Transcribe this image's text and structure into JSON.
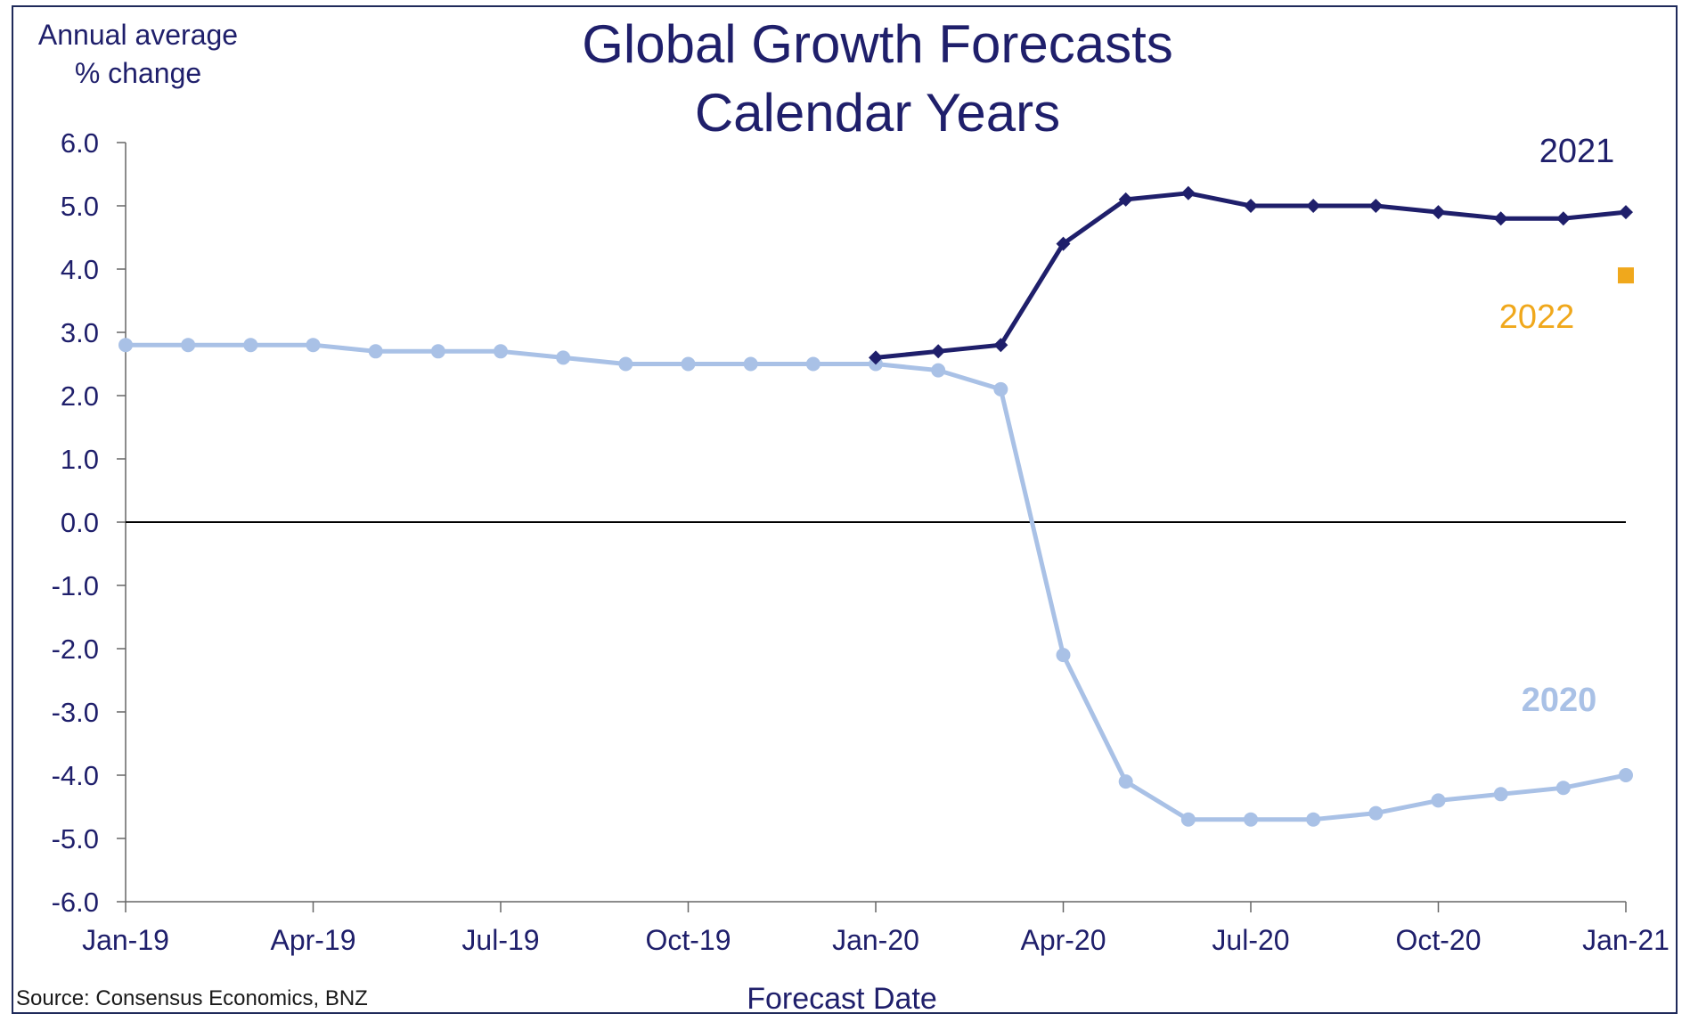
{
  "chart_data": {
    "type": "line",
    "title": "Global Growth Forecasts",
    "subtitle": "Calendar Years",
    "ylabel_lines": [
      "Annual average",
      "% change"
    ],
    "xlabel": "Forecast Date",
    "source": "Source: Consensus Economics, BNZ",
    "ylim": [
      -6,
      6
    ],
    "ytick_labels": [
      "6.0",
      "5.0",
      "4.0",
      "3.0",
      "2.0",
      "1.0",
      "0.0",
      "-1.0",
      "-2.0",
      "-3.0",
      "-4.0",
      "-5.0",
      "-6.0"
    ],
    "ytick_values": [
      6,
      5,
      4,
      3,
      2,
      1,
      0,
      -1,
      -2,
      -3,
      -4,
      -5,
      -6
    ],
    "x_months": [
      "Jan-19",
      "Feb-19",
      "Mar-19",
      "Apr-19",
      "May-19",
      "Jun-19",
      "Jul-19",
      "Aug-19",
      "Sep-19",
      "Oct-19",
      "Nov-19",
      "Dec-19",
      "Jan-20",
      "Feb-20",
      "Mar-20",
      "Apr-20",
      "May-20",
      "Jun-20",
      "Jul-20",
      "Aug-20",
      "Sep-20",
      "Oct-20",
      "Nov-20",
      "Dec-20",
      "Jan-21"
    ],
    "xtick_labels": [
      "Jan-19",
      "Apr-19",
      "Jul-19",
      "Oct-19",
      "Jan-20",
      "Apr-20",
      "Jul-20",
      "Oct-20",
      "Jan-21"
    ],
    "xtick_positions": [
      0,
      3,
      6,
      9,
      12,
      15,
      18,
      21,
      24
    ],
    "series": [
      {
        "name": "2020",
        "color": "#a9c1e6",
        "marker": "circle",
        "start_index": 0,
        "values": [
          2.8,
          2.8,
          2.8,
          2.8,
          2.7,
          2.7,
          2.7,
          2.6,
          2.5,
          2.5,
          2.5,
          2.5,
          2.5,
          2.4,
          2.1,
          -2.1,
          -4.1,
          -4.7,
          -4.7,
          -4.7,
          -4.6,
          -4.4,
          -4.3,
          -4.2,
          -4.0
        ]
      },
      {
        "name": "2021",
        "color": "#1f1f6b",
        "marker": "diamond",
        "start_index": 12,
        "values": [
          2.6,
          2.7,
          2.8,
          4.4,
          5.1,
          5.2,
          5.0,
          5.0,
          5.0,
          4.9,
          4.8,
          4.8,
          4.9
        ]
      },
      {
        "name": "2022",
        "color": "#f0a81c",
        "marker": "square",
        "start_index": 24,
        "values": [
          3.9
        ]
      }
    ],
    "zero_line": true,
    "grid": false
  }
}
